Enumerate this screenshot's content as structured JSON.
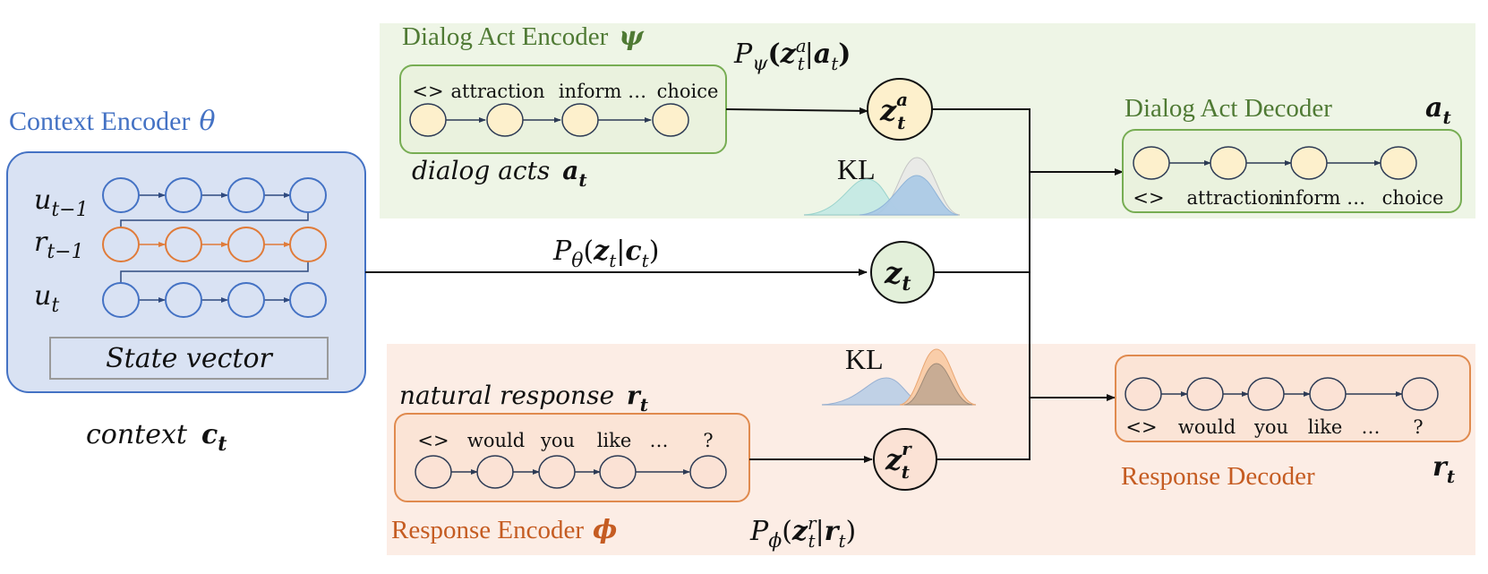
{
  "colors": {
    "green_panel": "#eef5e6",
    "green_border": "#77ad53",
    "green_text": "#4f7a34",
    "orange_panel": "#fcede5",
    "orange_border": "#e08a4e",
    "orange_text": "#c55c22",
    "blue_panel": "#d9e2f3",
    "blue_border": "#4472c4",
    "blue_text": "#4472c4",
    "node_yellow": "#fdf0cc",
    "node_peach": "#fbe2d5",
    "node_green": "#e3f0da"
  },
  "context_encoder": {
    "title": "Context Encoder",
    "param": "θ",
    "rows": [
      {
        "base": "u",
        "sub": "t−1"
      },
      {
        "base": "r",
        "sub": "t−1"
      },
      {
        "base": "u",
        "sub": "t"
      }
    ],
    "state_vector": "State vector",
    "context_label": "context",
    "context_var": "c",
    "context_sub": "t"
  },
  "dialog_act_encoder": {
    "title": "Dialog Act Encoder",
    "param": "ψ",
    "tokens": [
      "<>",
      "attraction",
      "inform …",
      "choice"
    ],
    "caption": "dialog acts",
    "caption_var": "a",
    "caption_sub": "t",
    "posterior": {
      "P": "P",
      "P_sub": "ψ",
      "z": "z",
      "z_sub": "t",
      "z_sup": "a",
      "cond": "a",
      "cond_sub": "t"
    }
  },
  "response_encoder": {
    "title": "Response Encoder",
    "param": "ϕ",
    "tokens": [
      "<>",
      "would",
      "you",
      "like",
      "…",
      "?"
    ],
    "caption": "natural response",
    "caption_var": "r",
    "caption_sub": "t",
    "posterior": {
      "P": "P",
      "P_sub": "ϕ",
      "z": "z",
      "z_sub": "t",
      "z_sup": "r",
      "cond": "r",
      "cond_sub": "t"
    }
  },
  "prior": {
    "P": "P",
    "P_sub": "θ",
    "z": "z",
    "z_sub": "t",
    "cond": "c",
    "cond_sub": "t"
  },
  "latents": {
    "za": {
      "base": "z",
      "sub": "t",
      "sup": "a"
    },
    "z": {
      "base": "z",
      "sub": "t"
    },
    "zr": {
      "base": "z",
      "sub": "t",
      "sup": "r"
    }
  },
  "kl_top": "KL",
  "kl_bottom": "KL",
  "dialog_act_decoder": {
    "title": "Dialog Act Decoder",
    "tokens": [
      "<>",
      "attraction",
      "inform …",
      "choice"
    ],
    "output_var": "a",
    "output_sub": "t"
  },
  "response_decoder": {
    "title": "Response Decoder",
    "tokens": [
      "<>",
      "would",
      "you",
      "like",
      "…",
      "?"
    ],
    "output_var": "r",
    "output_sub": "t"
  }
}
